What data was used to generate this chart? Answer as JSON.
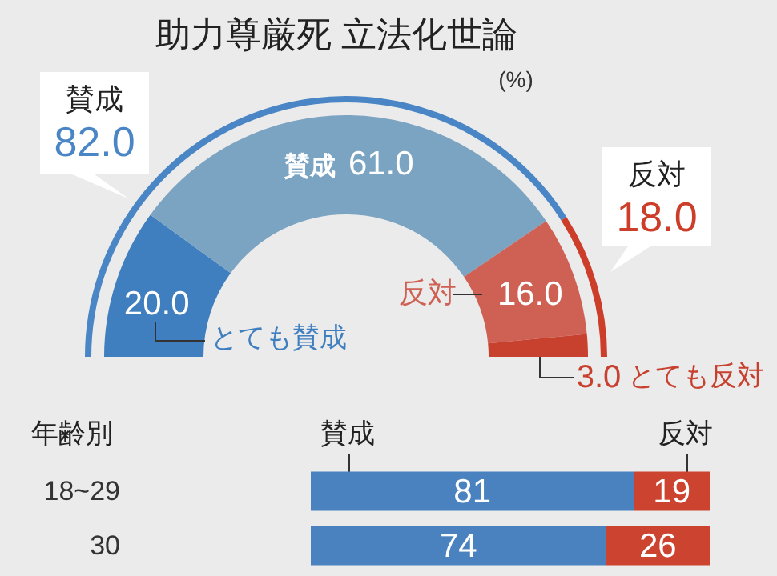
{
  "chart_data": [
    {
      "type": "donut",
      "title": "助力尊厳死 立法化世論",
      "annotations": [
        "(%)"
      ],
      "categories": [
        "とても賛成",
        "賛成",
        "反対",
        "とても反対"
      ],
      "values": [
        20,
        61,
        16,
        3
      ],
      "colors": [
        "#3f7ebf",
        "#7ba3c2",
        "#cf6154",
        "#c8402e"
      ],
      "value_labels": [
        "20.0",
        "61.0",
        "16.0",
        "3.0"
      ]
    },
    {
      "type": "donut",
      "categories": [
        "賛成",
        "反対"
      ],
      "values": [
        82,
        18
      ],
      "colors": [
        "#4a86c5",
        "#cc3d2a"
      ],
      "value_labels": [
        "82.0",
        "18.0"
      ]
    },
    {
      "type": "bar",
      "orientation": "horizontal",
      "stacked": true,
      "ylabel": "年齢別",
      "categories": [
        "18~29",
        "30"
      ],
      "xlim": [
        0,
        100
      ],
      "tick_labels": "y",
      "data_labels": true,
      "series": [
        {
          "name": "賛成",
          "color": "#4a82c0",
          "values": [
            81,
            74
          ]
        },
        {
          "name": "反対",
          "color": "#cc442f",
          "values": [
            19,
            26
          ]
        }
      ]
    }
  ]
}
